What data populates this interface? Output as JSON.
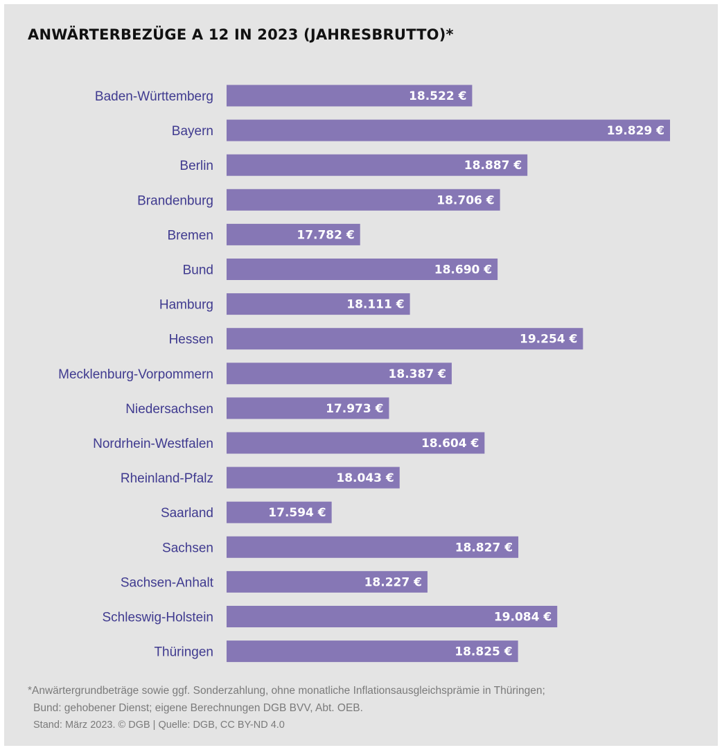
{
  "title": "ANWÄRTERBEZÜGE A 12 IN 2023 (JAHRESBRUTTO)*",
  "colors": {
    "bar": "#8677b5",
    "category_text": "#3f3a8f",
    "background": "#e4e4e4"
  },
  "chart_data": {
    "type": "bar",
    "orientation": "horizontal",
    "title": "ANWÄRTERBEZÜGE A 12 IN 2023 (JAHRESBRUTTO)*",
    "xlabel": "",
    "ylabel": "",
    "unit": "€",
    "categories": [
      "Baden-Württemberg",
      "Bayern",
      "Berlin",
      "Brandenburg",
      "Bremen",
      "Bund",
      "Hamburg",
      "Hessen",
      "Mecklenburg-Vorpommern",
      "Niedersachsen",
      "Nordrhein-Westfalen",
      "Rheinland-Pfalz",
      "Saarland",
      "Sachsen",
      "Sachsen-Anhalt",
      "Schleswig-Holstein",
      "Thüringen"
    ],
    "values": [
      18522,
      19829,
      18887,
      18706,
      17782,
      18690,
      18111,
      19254,
      18387,
      17973,
      18604,
      18043,
      17594,
      18827,
      18227,
      19084,
      18825
    ],
    "value_labels": [
      "18.522 €",
      "19.829 €",
      "18.887 €",
      "18.706 €",
      "17.782 €",
      "18.690 €",
      "18.111 €",
      "19.254 €",
      "18.387 €",
      "17.973 €",
      "18.604 €",
      "18.043 €",
      "17.594 €",
      "18.827 €",
      "18.227 €",
      "19.084 €",
      "18.825 €"
    ],
    "xlim": [
      16900,
      19829
    ],
    "grid": false,
    "legend": "none"
  },
  "footnote": {
    "line1": "*Anwärtergrundbeträge sowie ggf. Sonderzahlung, ohne monatliche Inflationsausgleichsprämie in Thüringen;",
    "line2": "Bund: gehobener Dienst; eigene Berechnungen DGB BVV, Abt. OEB.",
    "line3": "Stand: März 2023. © DGB | Quelle: DGB, CC BY-ND 4.0"
  }
}
